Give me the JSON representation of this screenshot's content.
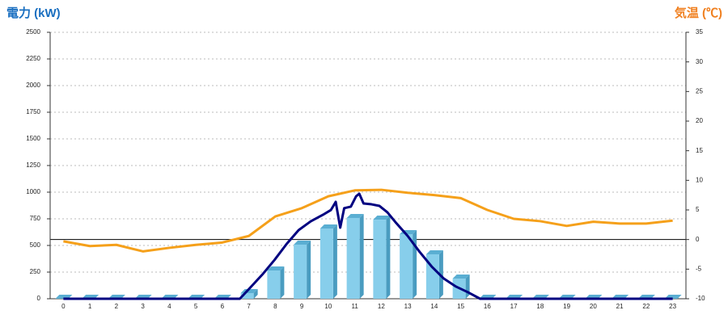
{
  "chart_data": {
    "type": "bar",
    "title": "電力 (kW)",
    "y2_title": "気温 (℃)",
    "categories": [
      "0",
      "1",
      "2",
      "3",
      "4",
      "5",
      "6",
      "7",
      "8",
      "9",
      "10",
      "11",
      "12",
      "13",
      "14",
      "15",
      "16",
      "17",
      "18",
      "19",
      "20",
      "21",
      "22",
      "23"
    ],
    "xlim": [
      -0.5,
      23.5
    ],
    "ylim": [
      0,
      2500
    ],
    "yticks": [
      0,
      250,
      500,
      750,
      1000,
      1250,
      1500,
      1750,
      2000,
      2250,
      2500
    ],
    "y2lim": [
      -10,
      35
    ],
    "y2ticks": [
      -10,
      -5,
      0,
      5,
      10,
      15,
      20,
      25,
      30,
      35
    ],
    "grid": true,
    "series": [
      {
        "type": "bar",
        "color": "#87ceeb",
        "values": [
          0,
          0,
          0,
          0,
          0,
          0,
          0,
          53,
          265,
          508,
          659,
          758,
          742,
          606,
          417,
          189,
          0,
          0,
          0,
          0,
          0,
          0,
          0,
          0
        ]
      },
      {
        "type": "line",
        "color": "#000080",
        "x": [
          0,
          6.66,
          7.06,
          7.51,
          7.97,
          8.43,
          8.88,
          9.34,
          9.8,
          10.1,
          10.28,
          10.45,
          10.6,
          10.85,
          11.05,
          11.17,
          11.33,
          11.63,
          11.93,
          12.23,
          12.53,
          12.99,
          13.45,
          13.9,
          14.36,
          14.82,
          15.27,
          15.73,
          23
        ],
        "values": [
          0,
          0,
          106,
          227,
          364,
          515,
          644,
          727,
          788,
          833,
          909,
          667,
          850,
          864,
          962,
          985,
          894,
          886,
          871,
          811,
          720,
          591,
          439,
          303,
          189,
          114,
          61,
          0,
          0
        ]
      },
      {
        "type": "line",
        "axis": "y2",
        "color": "#f5a01a",
        "values": [
          -0.3,
          -1.1,
          -0.9,
          -2.0,
          -1.4,
          -0.9,
          -0.5,
          0.6,
          3.9,
          5.3,
          7.3,
          8.3,
          8.4,
          7.9,
          7.5,
          7.0,
          5.0,
          3.5,
          3.1,
          2.3,
          3.0,
          2.7,
          2.7,
          3.2
        ]
      }
    ]
  }
}
